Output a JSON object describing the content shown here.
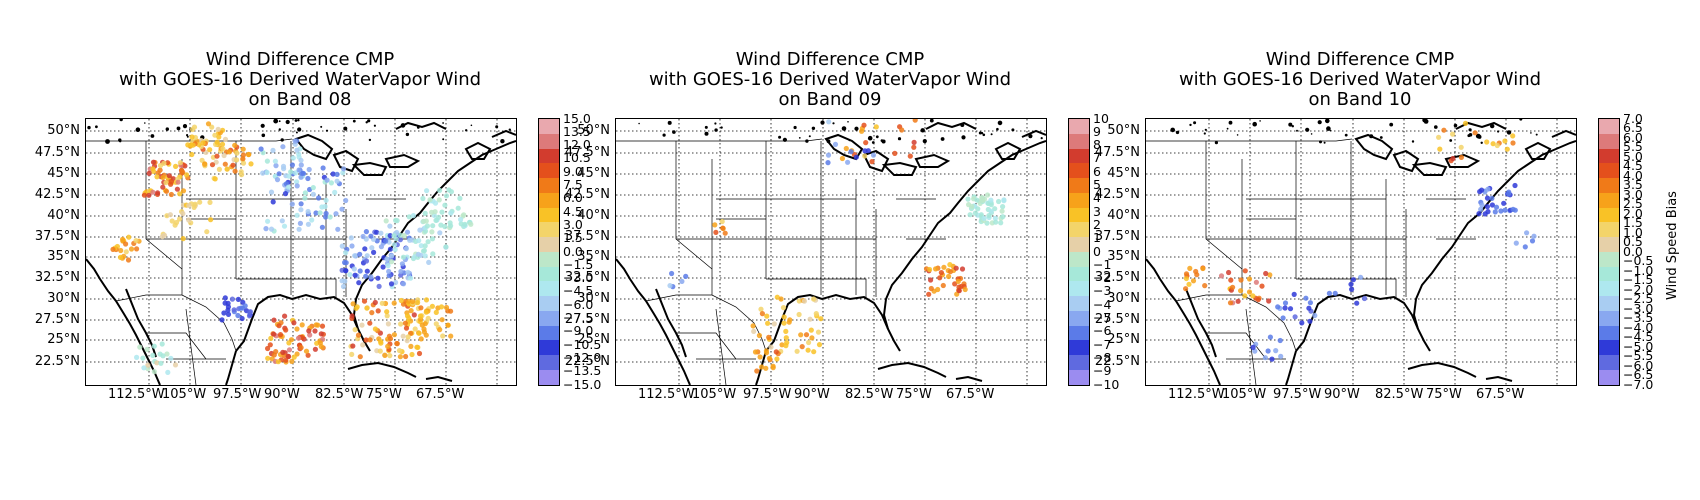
{
  "figure": {
    "colorbar_label": "Wind Speed Bias",
    "colormap": [
      "#9b8cf0",
      "#5f6ae0",
      "#2f3ad8",
      "#5b7be8",
      "#89a8f0",
      "#a9cdf2",
      "#aee8ef",
      "#a6e8d9",
      "#bde7c9",
      "#e6d0a8",
      "#f3d46a",
      "#f9c226",
      "#f7a21a",
      "#f07a18",
      "#e4501c",
      "#d23c2e",
      "#dd7a7a",
      "#e9a8ae"
    ],
    "lat_labels": [
      "50°N",
      "47.5°N",
      "45°N",
      "42.5°N",
      "40°N",
      "37.5°N",
      "35°N",
      "32.5°N",
      "30°N",
      "27.5°N",
      "25°N",
      "22.5°N"
    ],
    "lon_labels": [
      "112.5°W",
      "105°W",
      "97.5°W",
      "90°W",
      "82.5°W",
      "75°W",
      "67.5°W"
    ]
  },
  "panels": [
    {
      "title_line1": "Wind Difference CMP",
      "title_line2": "with GOES-16 Derived WaterVapor Wind",
      "title_line3": "on Band 08",
      "colorbar_ticks": [
        "15.0",
        "13.5",
        "12.0",
        "10.5",
        "9.0",
        "7.5",
        "6.0",
        "4.5",
        "3.0",
        "1.5",
        "0.0",
        "−1.5",
        "−3.0",
        "−4.5",
        "−6.0",
        "−7.5",
        "−9.0",
        "−10.5",
        "−12.0",
        "−13.5",
        "−15.0"
      ],
      "vmin": -15,
      "vmax": 15
    },
    {
      "title_line1": "Wind Difference CMP",
      "title_line2": "with GOES-16 Derived WaterVapor Wind",
      "title_line3": "on Band 09",
      "colorbar_ticks": [
        "10",
        "9",
        "8",
        "7",
        "6",
        "5",
        "4",
        "3",
        "2",
        "1",
        "0",
        "−1",
        "−2",
        "−3",
        "−4",
        "−5",
        "−6",
        "−7",
        "−8",
        "−9",
        "−10"
      ],
      "vmin": -10,
      "vmax": 10
    },
    {
      "title_line1": "Wind Difference CMP",
      "title_line2": "with GOES-16 Derived WaterVapor Wind",
      "title_line3": "on Band 10",
      "colorbar_ticks": [
        "7.0",
        "6.5",
        "6.0",
        "5.5",
        "5.0",
        "4.5",
        "4.0",
        "3.5",
        "3.0",
        "2.5",
        "2.0",
        "1.5",
        "1.0",
        "0.5",
        "0.0",
        "−0.5",
        "−1.0",
        "−1.5",
        "−2.0",
        "−2.5",
        "−3.0",
        "−3.5",
        "−4.0",
        "−4.5",
        "−5.0",
        "−5.5",
        "−6.0",
        "−6.5",
        "−7.0"
      ],
      "vmin": -7,
      "vmax": 7
    }
  ]
}
